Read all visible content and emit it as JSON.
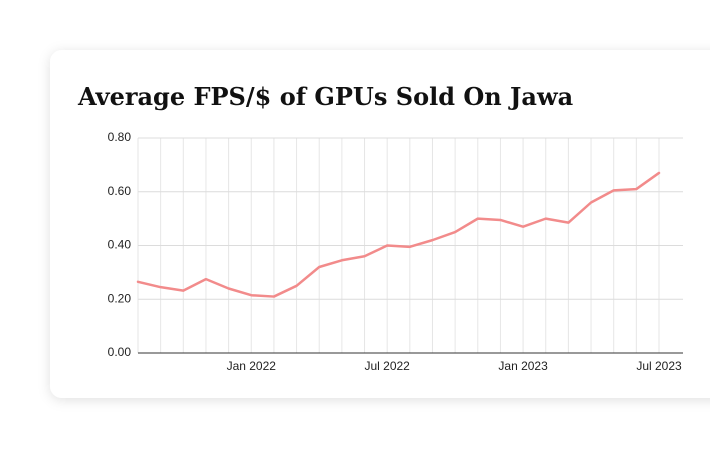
{
  "chart_data": {
    "type": "line",
    "title": "Average FPS/$ of GPUs Sold On Jawa",
    "categories": [
      null,
      null,
      null,
      null,
      null,
      "Jan 2022",
      null,
      null,
      null,
      null,
      null,
      "Jul 2022",
      null,
      null,
      null,
      null,
      null,
      "Jan 2023",
      null,
      null,
      null,
      null,
      null,
      "Jul 2023"
    ],
    "series": [
      {
        "name": "Average FPS/$",
        "color": "#f28b8b",
        "values": [
          0.265,
          0.245,
          0.232,
          0.275,
          0.24,
          0.215,
          0.21,
          0.25,
          0.32,
          0.345,
          0.36,
          0.4,
          0.395,
          0.42,
          0.45,
          0.5,
          0.495,
          0.47,
          0.5,
          0.485,
          0.56,
          0.605,
          0.61,
          0.67
        ]
      }
    ],
    "ylim": [
      0,
      0.8
    ],
    "yticks": [
      {
        "value": 0,
        "label": "0.00"
      },
      {
        "value": 0.2,
        "label": "0.20"
      },
      {
        "value": 0.4,
        "label": "0.40"
      },
      {
        "value": 0.6,
        "label": "0.60"
      },
      {
        "value": 0.8,
        "label": "0.80"
      }
    ],
    "grid": true
  }
}
